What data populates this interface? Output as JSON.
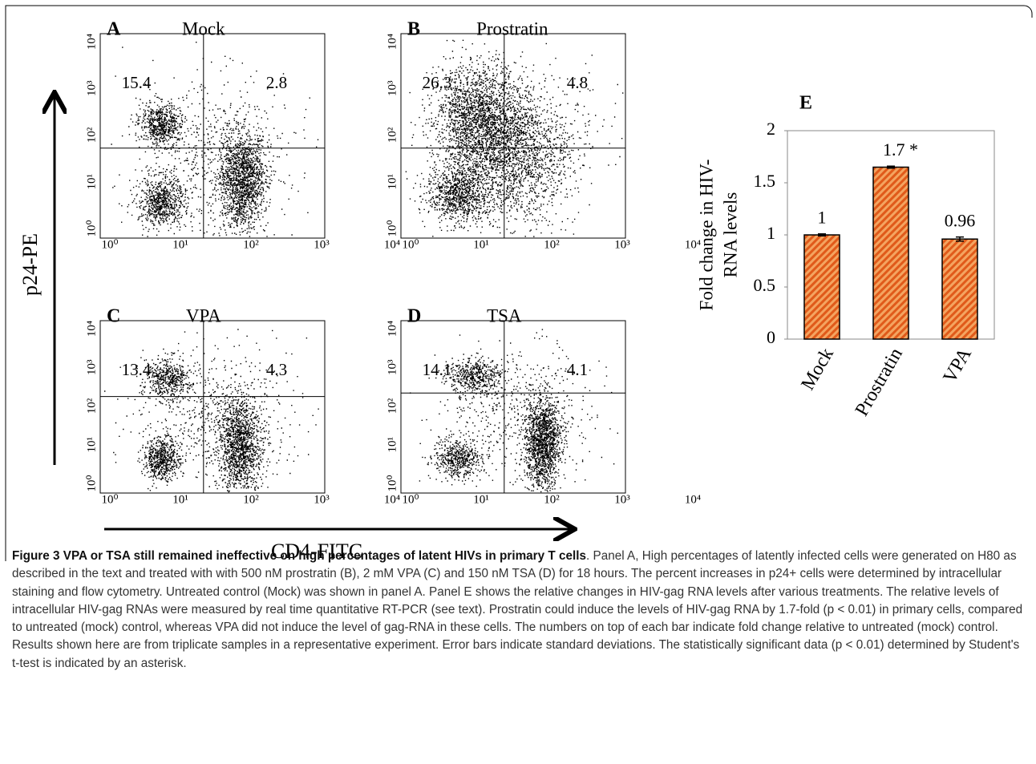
{
  "panels": [
    {
      "letter": "A",
      "title": "Mock",
      "upper_left": 15.4,
      "upper_right": 2.8
    },
    {
      "letter": "B",
      "title": "Prostratin",
      "upper_left": 26.3,
      "upper_right": 4.8
    },
    {
      "letter": "C",
      "title": "VPA",
      "upper_left": 13.4,
      "upper_right": 4.3
    },
    {
      "letter": "D",
      "title": "TSA",
      "upper_left": 14.1,
      "upper_right": 4.1
    }
  ],
  "flow_tick_labels": [
    "10⁰",
    "10¹",
    "10²",
    "10³",
    "10⁴"
  ],
  "y_axis_label": "p24-PE",
  "x_axis_label": "CD4-FITC",
  "chart_data": {
    "type": "bar",
    "panel_label": "E",
    "ylabel": [
      "Fold change in HIV-",
      "RNA levels"
    ],
    "categories": [
      "Mock",
      "Prostratin",
      "VPA"
    ],
    "values": [
      1,
      1.65,
      0.96
    ],
    "value_labels": [
      "1",
      "1.7 *",
      "0.96"
    ],
    "errors": [
      0.01,
      0.01,
      0.02
    ],
    "color": "#e8743a",
    "ylim": [
      0,
      2
    ],
    "yticks": [
      0,
      0.5,
      1,
      1.5,
      2
    ]
  },
  "caption": {
    "title": "Figure 3 VPA or TSA still remained ineffective on high percentages of latent HIVs in primary T cells",
    "text": ". Panel A, High percentages of latently infected cells were generated on H80 as described in the text and treated with with 500 nM prostratin (B), 2 mM VPA (C) and 150 nM TSA (D) for 18 hours. The percent increases in p24+ cells were determined by intracellular staining and flow cytometry. Untreated control (Mock) was shown in panel A. Panel E shows the relative changes in HIV-gag RNA levels after various treatments. The relative levels of intracellular HIV-gag RNAs were measured by real time quantitative RT-PCR (see text). Prostratin could induce the levels of HIV-gag RNA by 1.7-fold (p < 0.01) in primary cells, compared to untreated (mock) control, whereas VPA did not induce the level of gag-RNA in these cells. The numbers on top of each bar indicate fold change relative to untreated (mock) control. Results shown here are from triplicate samples in a representative experiment. Error bars indicate standard deviations. The statistically significant data (p < 0.01) determined by Student's t-test is indicated by an asterisk."
  }
}
